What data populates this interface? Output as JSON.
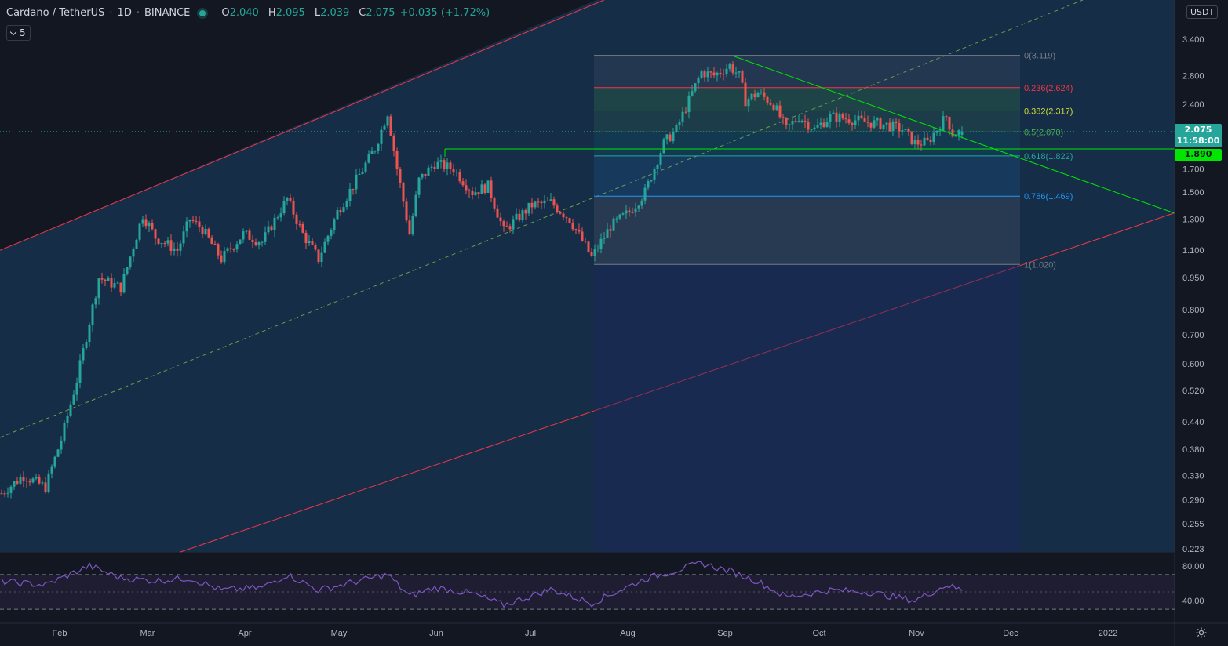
{
  "header": {
    "symbol": "Cardano / TetherUS",
    "interval": "1D",
    "exchange": "BINANCE",
    "open_label": "O",
    "open": "2.040",
    "high_label": "H",
    "high": "2.095",
    "low_label": "L",
    "low": "2.039",
    "close_label": "C",
    "close": "2.075",
    "change": "+0.035 (+1.72%)"
  },
  "indicators_button": {
    "count": "5"
  },
  "currency": "USDT",
  "last_price": {
    "value": "2.075",
    "countdown": "11:58:00"
  },
  "level_price": "1.890",
  "colors": {
    "up": "#26a69a",
    "down": "#ef5350",
    "channel": "#f23645",
    "trend": "#00e600",
    "rsi": "#7e57c2",
    "fib_blue": "#2196f3"
  },
  "chart_data": {
    "type": "candlestick",
    "symbol": "ADAUSDT",
    "scale": "log",
    "ylim": [
      0.223,
      4.0
    ],
    "y_ticks": [
      "3.400",
      "2.800",
      "2.400",
      "2.000",
      "1.700",
      "1.500",
      "1.300",
      "1.100",
      "0.950",
      "0.800",
      "0.700",
      "0.600",
      "0.520",
      "0.440",
      "0.380",
      "0.330",
      "0.290",
      "0.255",
      "0.223"
    ],
    "x_ticks": [
      "Feb",
      "Mar",
      "Apr",
      "May",
      "Jun",
      "Jul",
      "Aug",
      "Sep",
      "Oct",
      "Nov",
      "Dec",
      "2022"
    ],
    "x_range": [
      "2021-01-13",
      "2021-12-31"
    ],
    "closes": [
      {
        "date": "2021-01-13",
        "close": 0.3
      },
      {
        "date": "2021-01-20",
        "close": 0.33
      },
      {
        "date": "2021-01-27",
        "close": 0.31
      },
      {
        "date": "2021-02-01",
        "close": 0.4
      },
      {
        "date": "2021-02-06",
        "close": 0.55
      },
      {
        "date": "2021-02-10",
        "close": 0.75
      },
      {
        "date": "2021-02-13",
        "close": 0.95
      },
      {
        "date": "2021-02-20",
        "close": 0.9
      },
      {
        "date": "2021-02-27",
        "close": 1.33
      },
      {
        "date": "2021-03-03",
        "close": 1.18
      },
      {
        "date": "2021-03-10",
        "close": 1.1
      },
      {
        "date": "2021-03-14",
        "close": 1.3
      },
      {
        "date": "2021-03-18",
        "close": 1.23
      },
      {
        "date": "2021-03-24",
        "close": 1.05
      },
      {
        "date": "2021-03-31",
        "close": 1.2
      },
      {
        "date": "2021-04-06",
        "close": 1.15
      },
      {
        "date": "2021-04-14",
        "close": 1.45
      },
      {
        "date": "2021-04-19",
        "close": 1.2
      },
      {
        "date": "2021-04-24",
        "close": 1.05
      },
      {
        "date": "2021-04-30",
        "close": 1.35
      },
      {
        "date": "2021-05-06",
        "close": 1.6
      },
      {
        "date": "2021-05-12",
        "close": 1.9
      },
      {
        "date": "2021-05-16",
        "close": 2.3
      },
      {
        "date": "2021-05-19",
        "close": 1.7
      },
      {
        "date": "2021-05-23",
        "close": 1.2
      },
      {
        "date": "2021-05-26",
        "close": 1.6
      },
      {
        "date": "2021-05-31",
        "close": 1.75
      },
      {
        "date": "2021-06-06",
        "close": 1.7
      },
      {
        "date": "2021-06-12",
        "close": 1.5
      },
      {
        "date": "2021-06-17",
        "close": 1.55
      },
      {
        "date": "2021-06-22",
        "close": 1.22
      },
      {
        "date": "2021-06-26",
        "close": 1.3
      },
      {
        "date": "2021-07-01",
        "close": 1.4
      },
      {
        "date": "2021-07-07",
        "close": 1.42
      },
      {
        "date": "2021-07-13",
        "close": 1.3
      },
      {
        "date": "2021-07-20",
        "close": 1.06
      },
      {
        "date": "2021-07-26",
        "close": 1.25
      },
      {
        "date": "2021-08-01",
        "close": 1.35
      },
      {
        "date": "2021-08-06",
        "close": 1.5
      },
      {
        "date": "2021-08-12",
        "close": 1.95
      },
      {
        "date": "2021-08-16",
        "close": 2.1
      },
      {
        "date": "2021-08-21",
        "close": 2.55
      },
      {
        "date": "2021-08-24",
        "close": 2.85
      },
      {
        "date": "2021-08-28",
        "close": 2.8
      },
      {
        "date": "2021-09-02",
        "close": 2.95
      },
      {
        "date": "2021-09-05",
        "close": 2.8
      },
      {
        "date": "2021-09-07",
        "close": 2.45
      },
      {
        "date": "2021-09-11",
        "close": 2.55
      },
      {
        "date": "2021-09-16",
        "close": 2.4
      },
      {
        "date": "2021-09-20",
        "close": 2.1
      },
      {
        "date": "2021-09-24",
        "close": 2.25
      },
      {
        "date": "2021-09-29",
        "close": 2.1
      },
      {
        "date": "2021-10-04",
        "close": 2.25
      },
      {
        "date": "2021-10-10",
        "close": 2.22
      },
      {
        "date": "2021-10-16",
        "close": 2.18
      },
      {
        "date": "2021-10-22",
        "close": 2.15
      },
      {
        "date": "2021-10-27",
        "close": 2.1
      },
      {
        "date": "2021-10-31",
        "close": 1.95
      },
      {
        "date": "2021-11-04",
        "close": 1.96
      },
      {
        "date": "2021-11-08",
        "close": 2.15
      },
      {
        "date": "2021-11-10",
        "close": 2.25
      },
      {
        "date": "2021-11-12",
        "close": 2.05
      },
      {
        "date": "2021-11-15",
        "close": 2.075
      }
    ],
    "fibonacci": [
      {
        "ratio": "0",
        "price": "3.119",
        "label": "0(3.119)"
      },
      {
        "ratio": "0.236",
        "price": "2.624",
        "label": "0.236(2.624)"
      },
      {
        "ratio": "0.382",
        "price": "2.317",
        "label": "0.382(2.317)"
      },
      {
        "ratio": "0.5",
        "price": "2.070",
        "label": "0.5(2.070)"
      },
      {
        "ratio": "0.618",
        "price": "1.822",
        "label": "0.618(1.822)"
      },
      {
        "ratio": "0.786",
        "price": "1.469",
        "label": "0.786(1.469)"
      },
      {
        "ratio": "1",
        "price": "1.020",
        "label": "1(1.020)"
      }
    ],
    "rsi": {
      "ticks": [
        "80.00",
        "40.00"
      ],
      "bands": [
        70,
        30
      ],
      "points": [
        {
          "date": "2021-01-13",
          "value": 62
        },
        {
          "date": "2021-01-27",
          "value": 58
        },
        {
          "date": "2021-02-10",
          "value": 80
        },
        {
          "date": "2021-02-20",
          "value": 66
        },
        {
          "date": "2021-03-03",
          "value": 63
        },
        {
          "date": "2021-03-14",
          "value": 66
        },
        {
          "date": "2021-03-24",
          "value": 52
        },
        {
          "date": "2021-04-06",
          "value": 55
        },
        {
          "date": "2021-04-14",
          "value": 70
        },
        {
          "date": "2021-04-24",
          "value": 52
        },
        {
          "date": "2021-05-06",
          "value": 62
        },
        {
          "date": "2021-05-16",
          "value": 70
        },
        {
          "date": "2021-05-23",
          "value": 45
        },
        {
          "date": "2021-05-31",
          "value": 55
        },
        {
          "date": "2021-06-12",
          "value": 48
        },
        {
          "date": "2021-06-22",
          "value": 35
        },
        {
          "date": "2021-07-07",
          "value": 53
        },
        {
          "date": "2021-07-20",
          "value": 37
        },
        {
          "date": "2021-08-06",
          "value": 65
        },
        {
          "date": "2021-08-24",
          "value": 83
        },
        {
          "date": "2021-09-02",
          "value": 74
        },
        {
          "date": "2021-09-11",
          "value": 62
        },
        {
          "date": "2021-09-20",
          "value": 44
        },
        {
          "date": "2021-10-04",
          "value": 52
        },
        {
          "date": "2021-10-16",
          "value": 50
        },
        {
          "date": "2021-10-31",
          "value": 40
        },
        {
          "date": "2021-11-10",
          "value": 58
        },
        {
          "date": "2021-11-15",
          "value": 52
        }
      ]
    },
    "grid": false
  }
}
